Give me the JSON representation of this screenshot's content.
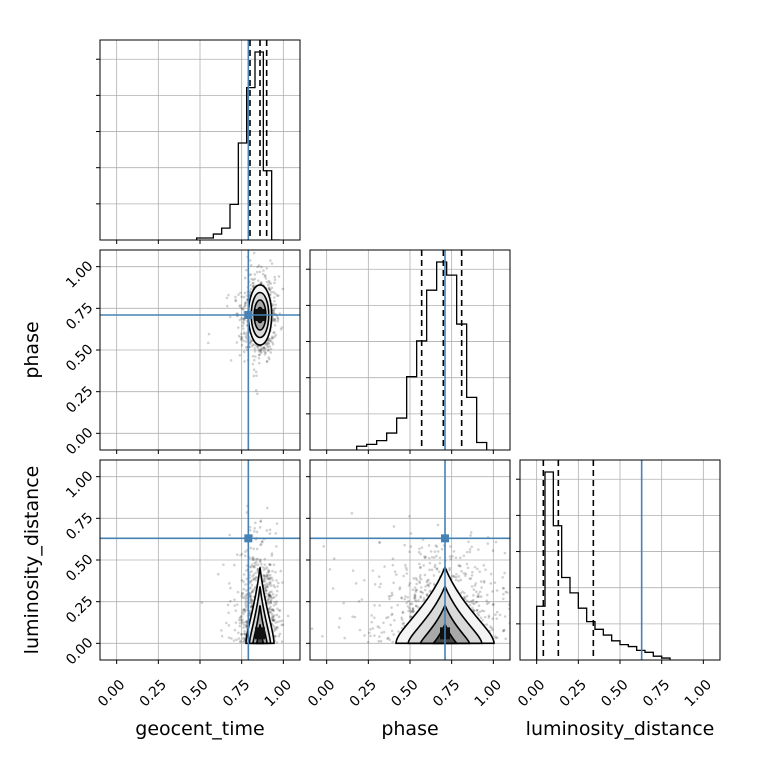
{
  "figure": {
    "kind": "corner-plot",
    "background": "#ffffff"
  },
  "colors": {
    "truth": "#4682b4",
    "line": "#000000",
    "grid": "#b0b0b0",
    "points": "#000000"
  },
  "chart_data": {
    "type": "corner",
    "parameters": [
      "geocent_time",
      "phase",
      "luminosity_distance"
    ],
    "axis_labels": [
      "geocent_time",
      "phase",
      "luminosity_distance"
    ],
    "ranges": [
      [
        -0.1,
        1.1
      ],
      [
        -0.1,
        1.1
      ],
      [
        -0.1,
        1.1
      ]
    ],
    "ticks": [
      0.0,
      0.25,
      0.5,
      0.75,
      1.0
    ],
    "tick_labels": [
      "0.00",
      "0.25",
      "0.50",
      "0.75",
      "1.00"
    ],
    "truths": [
      0.79,
      0.71,
      0.63
    ],
    "quantiles_dashed": [
      [
        0.8,
        0.86,
        0.9
      ],
      [
        0.57,
        0.7,
        0.81
      ],
      [
        0.04,
        0.13,
        0.34
      ]
    ],
    "grid": true,
    "histograms": [
      {
        "parameter": "geocent_time",
        "bin_edges": [
          0.48,
          0.53,
          0.58,
          0.63,
          0.68,
          0.73,
          0.78,
          0.83,
          0.88,
          0.93,
          0.98
        ],
        "counts": [
          0.01,
          0.01,
          0.03,
          0.06,
          0.18,
          0.49,
          0.77,
          0.95,
          0.35,
          0.0
        ]
      },
      {
        "parameter": "phase",
        "bin_edges": [
          0.18,
          0.24,
          0.3,
          0.36,
          0.42,
          0.48,
          0.54,
          0.6,
          0.66,
          0.72,
          0.78,
          0.84,
          0.9,
          0.96
        ],
        "counts": [
          0.02,
          0.03,
          0.05,
          0.09,
          0.17,
          0.39,
          0.58,
          0.85,
          1.0,
          0.93,
          0.67,
          0.28,
          0.04
        ]
      },
      {
        "parameter": "luminosity_distance",
        "bin_edges": [
          0.0,
          0.05,
          0.1,
          0.15,
          0.2,
          0.25,
          0.3,
          0.35,
          0.4,
          0.45,
          0.5,
          0.55,
          0.6,
          0.65,
          0.7,
          0.75,
          0.8
        ],
        "counts": [
          0.28,
          0.98,
          0.7,
          0.43,
          0.35,
          0.27,
          0.2,
          0.16,
          0.13,
          0.1,
          0.08,
          0.07,
          0.05,
          0.04,
          0.02,
          0.01
        ]
      }
    ],
    "density_2d": [
      {
        "x": "geocent_time",
        "y": "phase",
        "center": [
          0.86,
          0.71
        ],
        "spread": [
          0.035,
          0.09
        ],
        "contour_radii": [
          0.5,
          1.0,
          1.5,
          2.0
        ]
      },
      {
        "x": "geocent_time",
        "y": "luminosity_distance",
        "center": [
          0.86,
          0.06
        ],
        "spread": [
          0.04,
          0.24
        ],
        "shape": "truncated-at-zero",
        "contour_radii": [
          0.5,
          1.0,
          1.5,
          2.0
        ]
      },
      {
        "x": "phase",
        "y": "luminosity_distance",
        "center": [
          0.71,
          0.06
        ],
        "spread": [
          0.14,
          0.24
        ],
        "shape": "truncated-at-zero",
        "contour_radii": [
          0.5,
          1.0,
          1.5,
          2.0
        ]
      }
    ]
  }
}
